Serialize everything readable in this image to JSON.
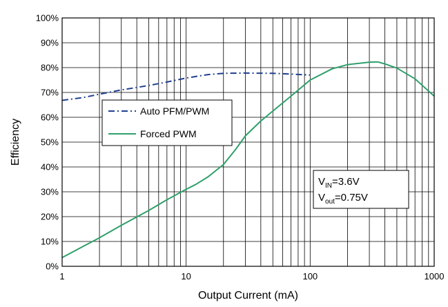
{
  "chart_data": {
    "type": "line",
    "title": "",
    "xlabel": "Output Current (mA)",
    "ylabel": "Efficiency",
    "x_scale": "log",
    "xlim": [
      1,
      1000
    ],
    "ylim": [
      0,
      100
    ],
    "x_ticks": [
      1,
      10,
      100,
      1000
    ],
    "x_tick_labels": [
      "1",
      "10",
      "100",
      "1000"
    ],
    "y_ticks": [
      0,
      10,
      20,
      30,
      40,
      50,
      60,
      70,
      80,
      90,
      100
    ],
    "y_tick_labels": [
      "0%",
      "10%",
      "20%",
      "30%",
      "40%",
      "50%",
      "60%",
      "70%",
      "80%",
      "90%",
      "100%"
    ],
    "grid": true,
    "legend_position": "upper-left",
    "series": [
      {
        "name": "Auto PFM/PWM",
        "color": "#1f3f8f",
        "dash": "dash-dot",
        "x": [
          1,
          1.5,
          2,
          3,
          5,
          7,
          10,
          15,
          20,
          30,
          50,
          70,
          100
        ],
        "y": [
          66.8,
          68.0,
          69.3,
          71.0,
          72.8,
          74.2,
          75.8,
          77.2,
          77.7,
          77.8,
          77.7,
          77.4,
          77.0
        ]
      },
      {
        "name": "Forced PWM",
        "color": "#2e9f6a",
        "dash": "solid",
        "x": [
          1,
          2,
          3,
          5,
          7,
          10,
          12,
          15,
          20,
          25,
          30,
          40,
          50,
          70,
          100,
          150,
          200,
          300,
          350,
          400,
          500,
          700,
          1000
        ],
        "y": [
          3.5,
          11.5,
          16.5,
          22.5,
          26.8,
          31.0,
          33.0,
          36.0,
          41.0,
          47.0,
          52.5,
          58.5,
          62.5,
          68.5,
          75.0,
          79.5,
          81.2,
          82.2,
          82.3,
          81.5,
          79.8,
          75.5,
          68.5
        ]
      }
    ],
    "legend": {
      "entries": [
        "Auto PFM/PWM",
        "Forced PWM"
      ]
    },
    "annotation": {
      "line1_main": "V",
      "line1_sub": "IN",
      "line1_value": "=3.6V",
      "line2_main": "V",
      "line2_sub": "out",
      "line2_value": "=0.75V"
    }
  }
}
